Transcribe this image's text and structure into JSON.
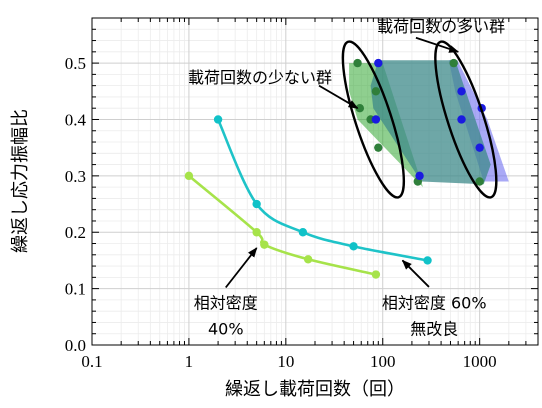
{
  "chart_data": {
    "type": "scatter",
    "xscale": "log",
    "xlim": [
      0.1,
      4000
    ],
    "ylim": [
      0.0,
      0.58
    ],
    "xlabel": "繰返し載荷回数（回）",
    "ylabel": "繰返し応力振幅比",
    "xticks": [
      {
        "value": 0.1,
        "label": "0.1"
      },
      {
        "value": 1,
        "label": "1"
      },
      {
        "value": 10,
        "label": "10"
      },
      {
        "value": 100,
        "label": "100"
      },
      {
        "value": 1000,
        "label": "1000"
      }
    ],
    "yticks": [
      {
        "value": 0.0,
        "label": "0.0"
      },
      {
        "value": 0.1,
        "label": "0.1"
      },
      {
        "value": 0.2,
        "label": "0.2"
      },
      {
        "value": 0.3,
        "label": "0.3"
      },
      {
        "value": 0.4,
        "label": "0.4"
      },
      {
        "value": 0.5,
        "label": "0.5"
      }
    ],
    "grid": true,
    "series": [
      {
        "color": "#1ec3c8",
        "marker_color": "#10c2c8",
        "kind": "line",
        "points": [
          [
            2,
            0.4
          ],
          [
            5,
            0.25
          ],
          [
            15,
            0.2
          ],
          [
            50,
            0.175
          ],
          [
            290,
            0.15
          ]
        ]
      },
      {
        "color": "#a6e34a",
        "marker_color": "#a6e34a",
        "kind": "line",
        "points": [
          [
            1,
            0.3
          ],
          [
            5,
            0.2
          ],
          [
            6,
            0.178
          ],
          [
            17,
            0.152
          ],
          [
            85,
            0.125
          ]
        ]
      },
      {
        "color": "#2f7f3a",
        "kind": "scatter",
        "points": [
          [
            55,
            0.5
          ],
          [
            85,
            0.45
          ],
          [
            58,
            0.42
          ],
          [
            75,
            0.4
          ],
          [
            90,
            0.35
          ],
          [
            230,
            0.29
          ],
          [
            540,
            0.5
          ],
          [
            1000,
            0.29
          ]
        ]
      },
      {
        "color": "#1a1ae0",
        "kind": "scatter",
        "points": [
          [
            90,
            0.5
          ],
          [
            85,
            0.4
          ],
          [
            240,
            0.3
          ],
          [
            650,
            0.45
          ],
          [
            1050,
            0.42
          ],
          [
            650,
            0.4
          ],
          [
            1000,
            0.35
          ]
        ]
      }
    ],
    "regions": [
      {
        "color": "#1fa01f",
        "opacity": 0.5,
        "points": [
          [
            45,
            0.5
          ],
          [
            100,
            0.5
          ],
          [
            260,
            0.28
          ],
          [
            200,
            0.3
          ],
          [
            55,
            0.4
          ],
          [
            45,
            0.45
          ]
        ]
      },
      {
        "color": "#7070f0",
        "opacity": 0.6,
        "points": [
          [
            480,
            0.505
          ],
          [
            590,
            0.505
          ],
          [
            1200,
            0.4
          ],
          [
            2000,
            0.29
          ],
          [
            1100,
            0.29
          ],
          [
            560,
            0.45
          ]
        ]
      },
      {
        "color": "#3d8a8a",
        "opacity": 0.75,
        "points": [
          [
            90,
            0.505
          ],
          [
            560,
            0.505
          ],
          [
            1300,
            0.32
          ],
          [
            1100,
            0.285
          ],
          [
            250,
            0.29
          ],
          [
            80,
            0.42
          ],
          [
            75,
            0.46
          ]
        ]
      }
    ],
    "ellipses": [
      {
        "center": [
          80,
          0.4
        ],
        "xspan_log": 0.37,
        "yspan": 0.145,
        "angle_deg": -18
      },
      {
        "center": [
          720,
          0.4
        ],
        "xspan_log": 0.37,
        "yspan": 0.145,
        "angle_deg": -18
      }
    ],
    "annotations": [
      {
        "id": "many",
        "text": "載荷回数の多い群",
        "text_at": [
          400,
          0.555
        ],
        "arrow_to": [
          600,
          0.52
        ],
        "arrow_from": [
          220,
          0.545
        ]
      },
      {
        "id": "few",
        "text": "載荷回数の少ない群",
        "text_at": [
          12,
          0.465
        ],
        "arrow_to": [
          55,
          0.42
        ],
        "arrow_from": [
          22,
          0.46
        ]
      },
      {
        "id": "relden40",
        "lines": [
          "相対密度",
          "40%"
        ],
        "text_at": [
          2.4,
          0.065
        ],
        "arrow_to": [
          5,
          0.172
        ],
        "arrow_from": [
          2.4,
          0.102
        ]
      },
      {
        "id": "relden60",
        "lines": [
          "相対密度 60%",
          "無改良"
        ],
        "text_at": [
          340,
          0.065
        ],
        "arrow_to": [
          160,
          0.15
        ],
        "arrow_from": [
          300,
          0.103
        ]
      }
    ]
  }
}
